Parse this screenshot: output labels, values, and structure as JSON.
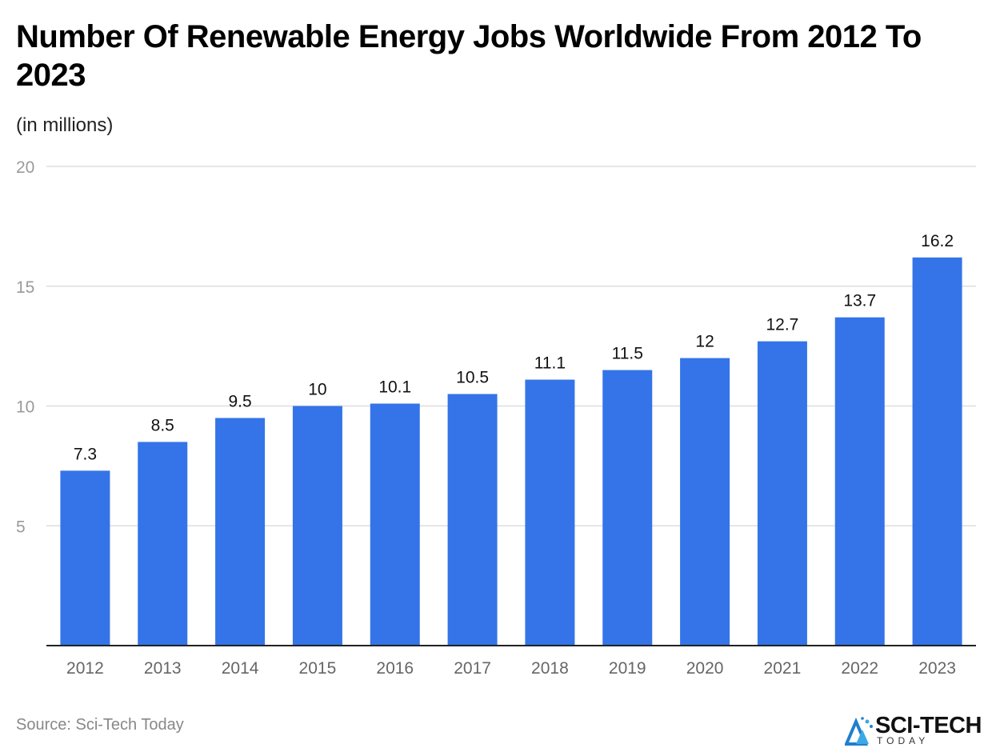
{
  "chart_data": {
    "type": "bar",
    "title": "Number Of Renewable Energy Jobs Worldwide From 2012 To 2023",
    "subtitle": "(in millions)",
    "categories": [
      "2012",
      "2013",
      "2014",
      "2015",
      "2016",
      "2017",
      "2018",
      "2019",
      "2020",
      "2021",
      "2022",
      "2023"
    ],
    "values": [
      7.3,
      8.5,
      9.5,
      10,
      10.1,
      10.5,
      11.1,
      11.5,
      12,
      12.7,
      13.7,
      16.2
    ],
    "value_labels": [
      "7.3",
      "8.5",
      "9.5",
      "10",
      "10.1",
      "10.5",
      "11.1",
      "11.5",
      "12",
      "12.7",
      "13.7",
      "16.2"
    ],
    "ylim": [
      0,
      20
    ],
    "yticks": [
      5,
      10,
      15,
      20
    ],
    "ytick_labels": [
      "5",
      "10",
      "15",
      "20"
    ],
    "grid": true,
    "bar_color": "#3474e8"
  },
  "footer": {
    "source": "Source: Sci-Tech Today",
    "logo_text": "SCI-TECH",
    "logo_subtext": "TODAY"
  }
}
